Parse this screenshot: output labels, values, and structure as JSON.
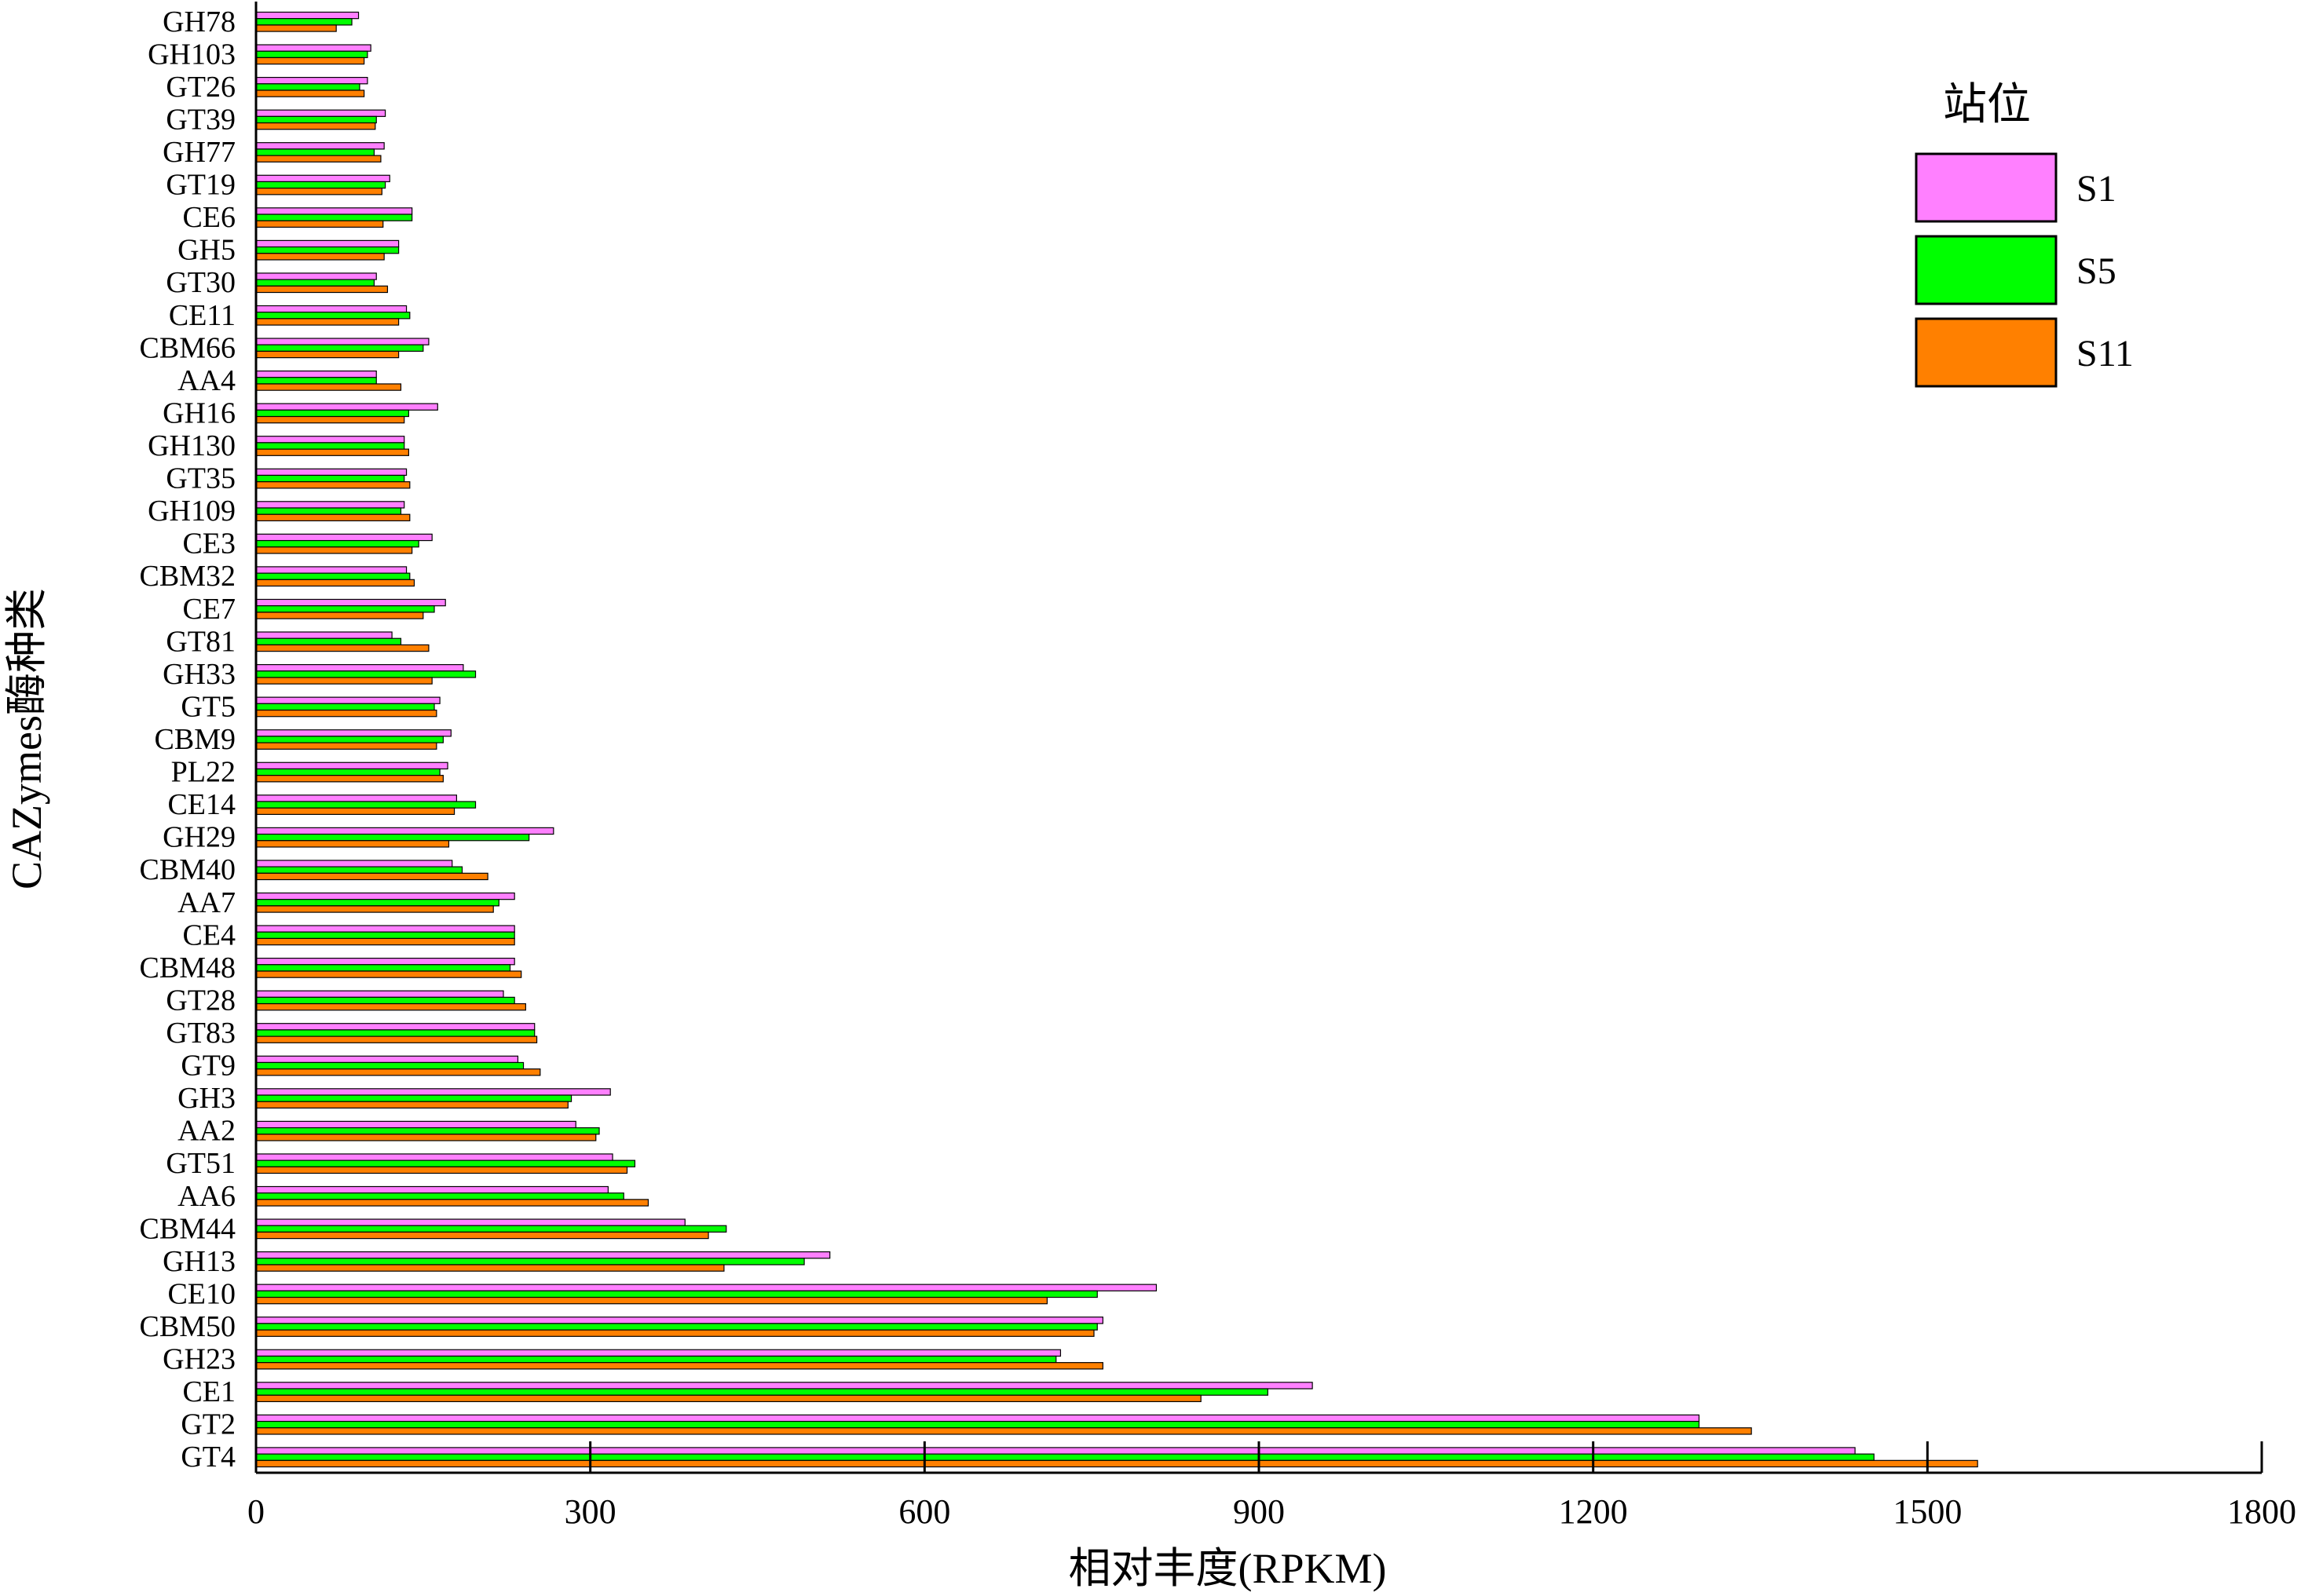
{
  "chart_data": {
    "type": "bar",
    "orientation": "horizontal",
    "xlabel": "相对丰度(RPKM)",
    "ylabel": "CAZymes酶种类",
    "xlim": [
      0,
      1800
    ],
    "xticks": [
      0,
      300,
      600,
      900,
      1200,
      1500,
      1800
    ],
    "legend": {
      "title": "站位",
      "position": "top-right"
    },
    "categories": [
      "GH78",
      "GH103",
      "GT26",
      "GT39",
      "GH77",
      "GT19",
      "CE6",
      "GH5",
      "GT30",
      "CE11",
      "CBM66",
      "AA4",
      "GH16",
      "GH130",
      "GT35",
      "GH109",
      "CE3",
      "CBM32",
      "CE7",
      "GT81",
      "GH33",
      "GT5",
      "CBM9",
      "PL22",
      "CE14",
      "GH29",
      "CBM40",
      "AA7",
      "CE4",
      "CBM48",
      "GT28",
      "GT83",
      "GT9",
      "GH3",
      "AA2",
      "GT51",
      "AA6",
      "CBM44",
      "GH13",
      "CE10",
      "CBM50",
      "GH23",
      "CE1",
      "GT2",
      "GT4"
    ],
    "series": [
      {
        "name": "S1",
        "color": "#ff80ff",
        "values": [
          92,
          103,
          100,
          116,
          115,
          120,
          140,
          128,
          108,
          135,
          155,
          108,
          163,
          133,
          135,
          133,
          158,
          135,
          170,
          122,
          186,
          165,
          175,
          172,
          180,
          267,
          176,
          232,
          232,
          232,
          222,
          250,
          235,
          318,
          287,
          320,
          316,
          385,
          515,
          808,
          760,
          722,
          948,
          1295,
          1435
        ]
      },
      {
        "name": "S5",
        "color": "#00ff00",
        "values": [
          86,
          100,
          93,
          108,
          106,
          116,
          140,
          128,
          106,
          138,
          150,
          108,
          137,
          133,
          133,
          130,
          146,
          138,
          160,
          130,
          197,
          160,
          168,
          165,
          197,
          245,
          185,
          218,
          232,
          228,
          232,
          250,
          240,
          283,
          308,
          340,
          330,
          422,
          492,
          755,
          755,
          718,
          908,
          1295,
          1452
        ]
      },
      {
        "name": "S11",
        "color": "#ff8000",
        "values": [
          72,
          97,
          97,
          107,
          112,
          113,
          114,
          115,
          118,
          128,
          128,
          130,
          133,
          137,
          138,
          138,
          140,
          142,
          150,
          155,
          158,
          162,
          162,
          168,
          178,
          173,
          208,
          213,
          232,
          238,
          242,
          252,
          255,
          280,
          305,
          333,
          352,
          406,
          420,
          710,
          752,
          760,
          848,
          1342,
          1545
        ]
      }
    ]
  }
}
